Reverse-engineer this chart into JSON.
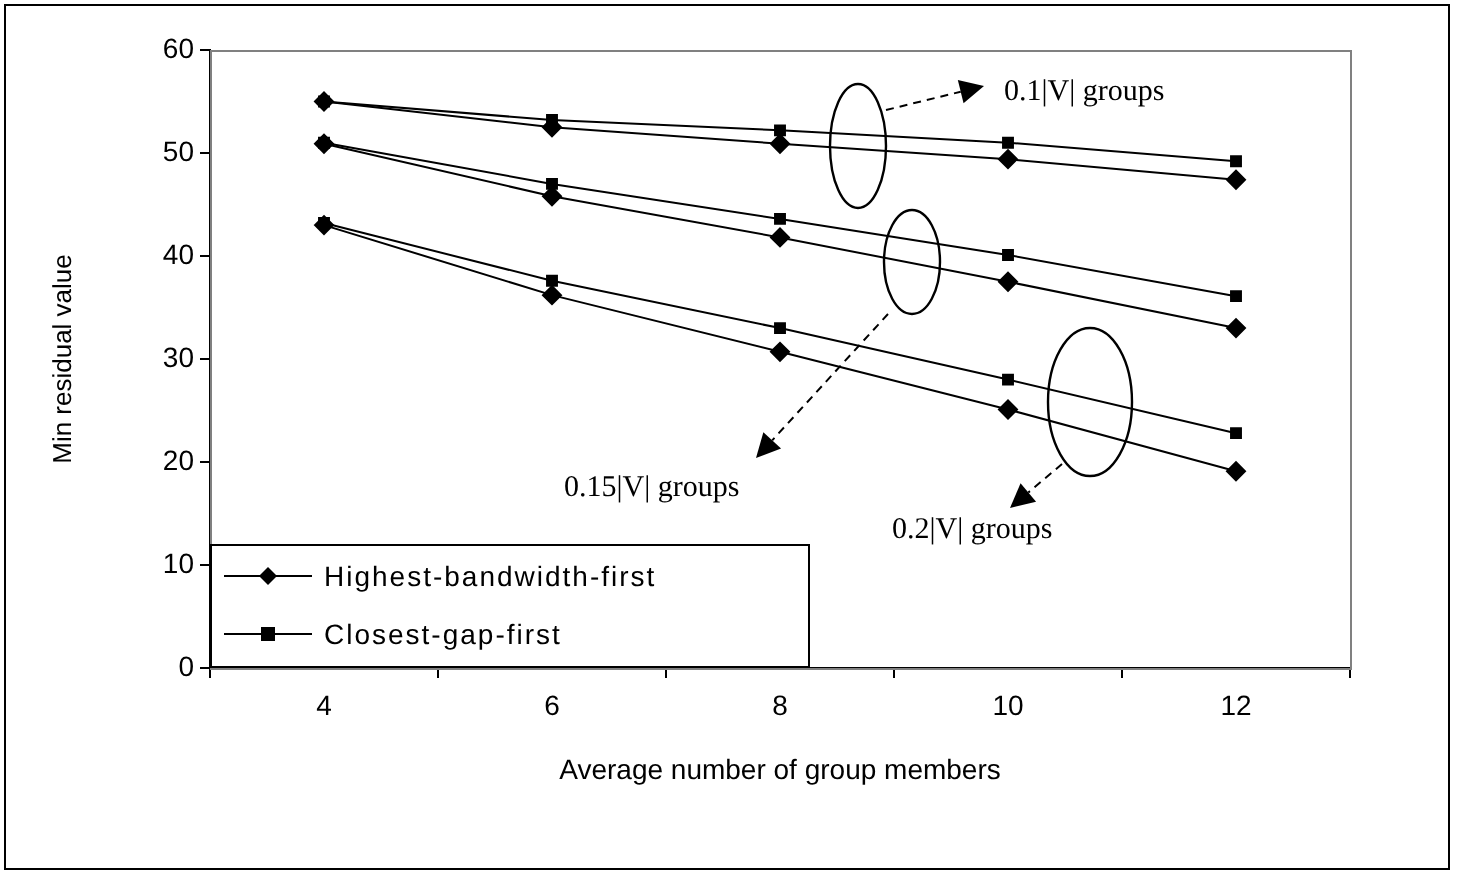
{
  "chart_data": {
    "type": "line",
    "xlabel": "Average number of group members",
    "ylabel": "Min residual value",
    "categories": [
      "4",
      "6",
      "8",
      "10",
      "12"
    ],
    "ylim": [
      0,
      60
    ],
    "yticks": [
      0,
      10,
      20,
      30,
      40,
      50,
      60
    ],
    "grid": false,
    "legend": "bottom left",
    "line_style": "solid",
    "series": [
      {
        "name": "Highest-bandwidth-first",
        "color": "#000000",
        "marker": "diamond",
        "values": [
          55,
          52.5,
          50.9,
          49.4,
          47.4
        ]
      },
      {
        "name": "Closest-gap-first",
        "color": "#000000",
        "marker": "square",
        "values": [
          55,
          53.2,
          52.2,
          51,
          49.2
        ]
      },
      {
        "color": "#000000",
        "marker": "diamond",
        "values": [
          50.9,
          45.8,
          41.8,
          37.5,
          33
        ]
      },
      {
        "color": "#000000",
        "marker": "square",
        "values": [
          51,
          47,
          43.6,
          40.1,
          36.1
        ]
      },
      {
        "color": "#000000",
        "marker": "diamond",
        "values": [
          43,
          36.2,
          30.7,
          25.1,
          19.1
        ]
      },
      {
        "color": "#000000",
        "marker": "square",
        "values": [
          43.2,
          37.6,
          33,
          28,
          22.8
        ]
      }
    ],
    "annotations": [
      "0.1|V| groups",
      "0.15|V| groups",
      "0.2|V| groups"
    ]
  }
}
